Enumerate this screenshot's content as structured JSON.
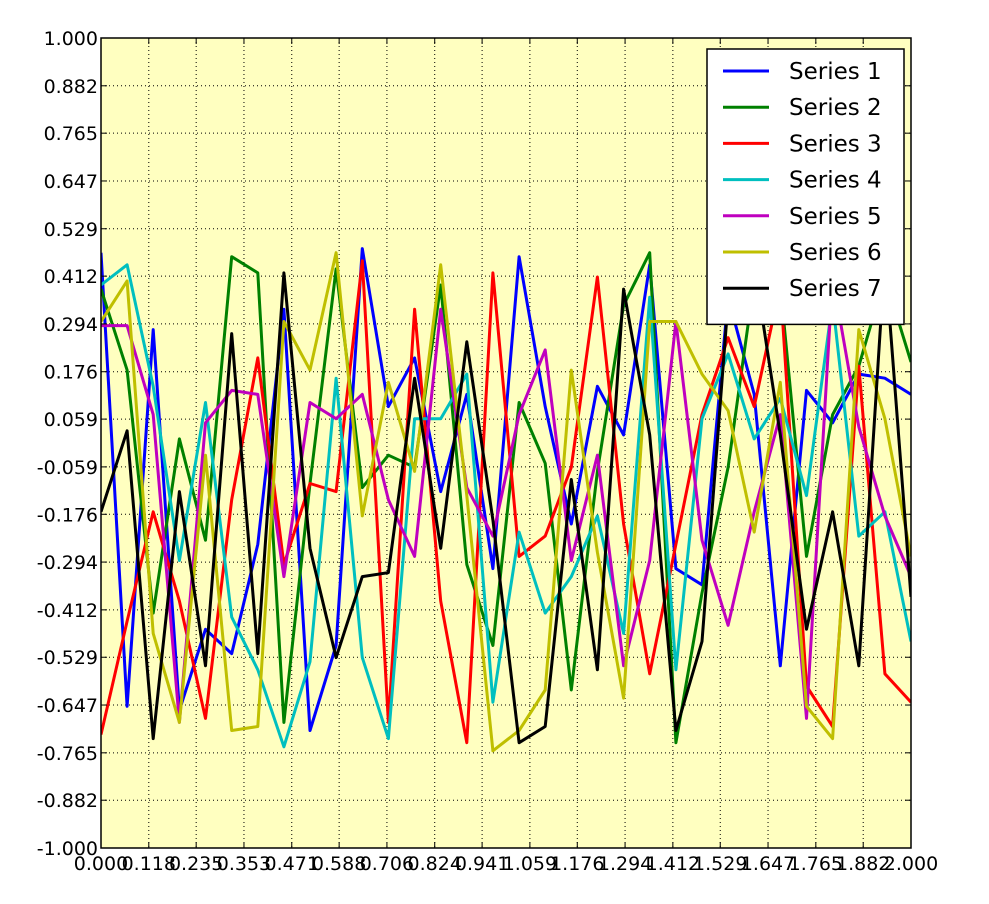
{
  "chart_data": {
    "type": "line",
    "title": "",
    "xlabel": "",
    "ylabel": "",
    "xlim": [
      0.0,
      2.0
    ],
    "ylim": [
      -1.0,
      1.0
    ],
    "grid": true,
    "grid_style": "dotted",
    "legend_position": "top-right",
    "background_color": "#ffffc0",
    "x_ticks": [
      "0.000",
      "0.118",
      "0.235",
      "0.353",
      "0.471",
      "0.588",
      "0.706",
      "0.824",
      "0.941",
      "1.059",
      "1.176",
      "1.294",
      "1.412",
      "1.529",
      "1.647",
      "1.765",
      "1.882",
      "2.000"
    ],
    "y_ticks": [
      "1.000",
      "0.882",
      "0.765",
      "0.647",
      "0.529",
      "0.412",
      "0.294",
      "0.176",
      "0.059",
      "-0.059",
      "-0.176",
      "-0.294",
      "-0.412",
      "-0.529",
      "-0.647",
      "-0.765",
      "-0.882",
      "-1.000"
    ],
    "x": [
      0.0,
      0.0645,
      0.129,
      0.1935,
      0.258,
      0.3226,
      0.3871,
      0.4516,
      0.5161,
      0.5806,
      0.6452,
      0.7097,
      0.7742,
      0.8387,
      0.9032,
      0.9677,
      1.0323,
      1.0968,
      1.1613,
      1.2258,
      1.2903,
      1.3548,
      1.4194,
      1.4839,
      1.5484,
      1.6129,
      1.6774,
      1.7419,
      1.8065,
      1.871,
      1.9355,
      2.0
    ],
    "series": [
      {
        "name": "Series 1",
        "color": "#0000ff",
        "values": [
          0.47,
          -0.65,
          0.28,
          -0.66,
          -0.46,
          -0.52,
          -0.25,
          0.33,
          -0.71,
          -0.5,
          0.48,
          0.09,
          0.21,
          -0.12,
          0.12,
          -0.31,
          0.46,
          0.09,
          -0.2,
          0.14,
          0.02,
          0.44,
          -0.31,
          -0.35,
          0.36,
          0.12,
          -0.55,
          0.13,
          0.05,
          0.17,
          0.16,
          0.12
        ]
      },
      {
        "name": "Series 2",
        "color": "#008000",
        "values": [
          0.38,
          0.18,
          -0.42,
          0.01,
          -0.24,
          0.46,
          0.42,
          -0.69,
          -0.1,
          0.43,
          -0.11,
          -0.03,
          -0.06,
          0.39,
          -0.3,
          -0.5,
          0.1,
          -0.05,
          -0.61,
          -0.07,
          0.34,
          0.47,
          -0.74,
          -0.37,
          -0.06,
          0.4,
          0.39,
          -0.28,
          0.07,
          0.19,
          0.41,
          0.2
        ]
      },
      {
        "name": "Series 3",
        "color": "#ff0000",
        "values": [
          -0.72,
          -0.44,
          -0.17,
          -0.39,
          -0.68,
          -0.14,
          0.21,
          -0.3,
          -0.1,
          -0.12,
          0.45,
          -0.69,
          0.33,
          -0.39,
          -0.74,
          0.42,
          -0.28,
          -0.23,
          -0.06,
          0.41,
          -0.2,
          -0.57,
          -0.25,
          0.07,
          0.26,
          0.09,
          0.39,
          -0.6,
          -0.7,
          0.19,
          -0.57,
          -0.64
        ]
      },
      {
        "name": "Series 4",
        "color": "#00bfbf",
        "values": [
          0.39,
          0.44,
          0.14,
          -0.29,
          0.1,
          -0.43,
          -0.56,
          -0.75,
          -0.54,
          0.16,
          -0.53,
          -0.73,
          0.06,
          0.06,
          0.17,
          -0.64,
          -0.22,
          -0.42,
          -0.33,
          -0.18,
          -0.47,
          0.36,
          -0.56,
          0.06,
          0.22,
          0.01,
          0.11,
          -0.13,
          0.35,
          -0.23,
          -0.17,
          -0.49
        ]
      },
      {
        "name": "Series 5",
        "color": "#bf00bf",
        "values": [
          0.29,
          0.29,
          0.07,
          -0.69,
          0.05,
          0.13,
          0.12,
          -0.33,
          0.1,
          0.06,
          0.12,
          -0.14,
          -0.28,
          0.33,
          -0.11,
          -0.23,
          0.07,
          0.23,
          -0.29,
          -0.03,
          -0.55,
          -0.29,
          0.3,
          -0.24,
          -0.45,
          -0.17,
          0.07,
          -0.68,
          0.41,
          0.04,
          -0.18,
          -0.33
        ]
      },
      {
        "name": "Series 6",
        "color": "#bfbf00",
        "values": [
          0.3,
          0.4,
          -0.47,
          -0.69,
          -0.03,
          -0.71,
          -0.7,
          0.3,
          0.18,
          0.47,
          -0.18,
          0.15,
          -0.07,
          0.44,
          -0.13,
          -0.76,
          -0.71,
          -0.61,
          0.18,
          -0.27,
          -0.63,
          0.3,
          0.3,
          0.17,
          0.08,
          -0.22,
          0.15,
          -0.65,
          -0.73,
          0.28,
          0.06,
          -0.28
        ]
      },
      {
        "name": "Series 7",
        "color": "#000000",
        "values": [
          -0.17,
          0.03,
          -0.73,
          -0.12,
          -0.55,
          0.27,
          -0.52,
          0.42,
          -0.26,
          -0.53,
          -0.33,
          -0.32,
          0.16,
          -0.26,
          0.25,
          -0.19,
          -0.74,
          -0.7,
          -0.09,
          -0.56,
          0.38,
          0.02,
          -0.71,
          -0.49,
          0.35,
          0.44,
          0.02,
          -0.46,
          -0.17,
          -0.55,
          0.46,
          -0.38
        ]
      }
    ]
  }
}
